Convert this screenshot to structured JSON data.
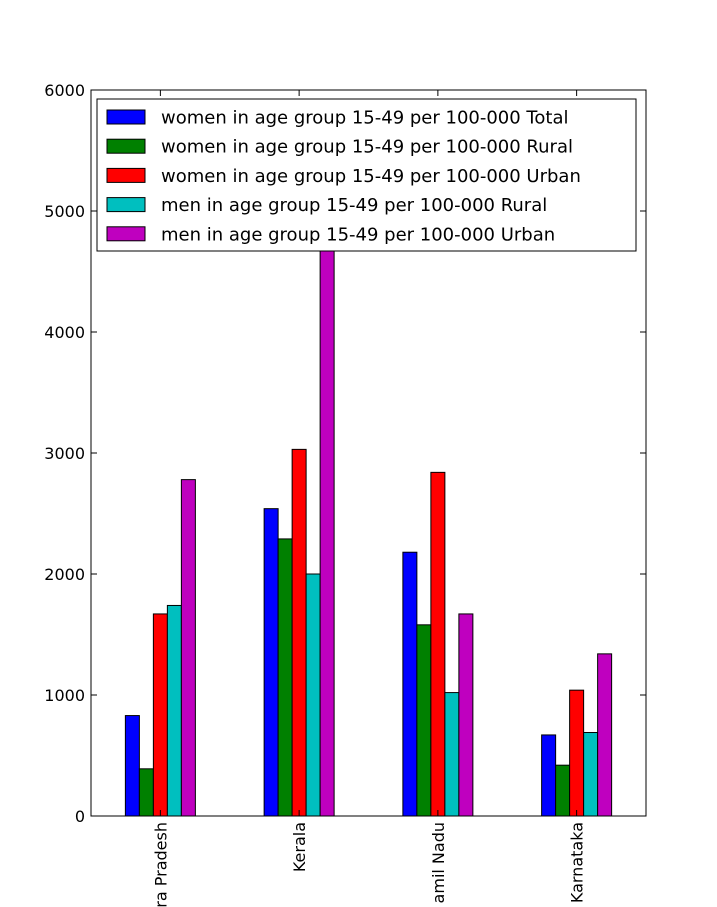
{
  "chart_data": {
    "type": "bar",
    "title": "",
    "xlabel": "",
    "ylabel": "",
    "ylim": [
      0,
      6000
    ],
    "yticks": [
      0,
      1000,
      2000,
      3000,
      4000,
      5000,
      6000
    ],
    "grid": false,
    "legend_position": "top-left",
    "categories": [
      "Andhra Pradesh",
      "Kerala",
      "Tamil Nadu",
      "Karnataka"
    ],
    "category_tick_labels": [
      "ra Pradesh",
      "Kerala",
      "amil Nadu",
      "Karnataka"
    ],
    "series": [
      {
        "name": "women in age group 15-49 per 100-000 Total",
        "color": "#0000ff",
        "values": [
          830,
          2540,
          2180,
          670
        ]
      },
      {
        "name": "women in age group 15-49 per 100-000 Rural",
        "color": "#008000",
        "values": [
          390,
          2290,
          1580,
          420
        ]
      },
      {
        "name": "women in age group 15-49 per 100-000 Urban",
        "color": "#ff0000",
        "values": [
          1670,
          3030,
          2840,
          1040
        ]
      },
      {
        "name": "men in age group 15-49 per 100-000 Rural",
        "color": "#00bfbf",
        "values": [
          1740,
          2000,
          1020,
          690
        ]
      },
      {
        "name": "men in age group 15-49 per 100-000 Urban",
        "color": "#bf00bf",
        "values": [
          2780,
          5300,
          1670,
          1340
        ]
      }
    ]
  }
}
